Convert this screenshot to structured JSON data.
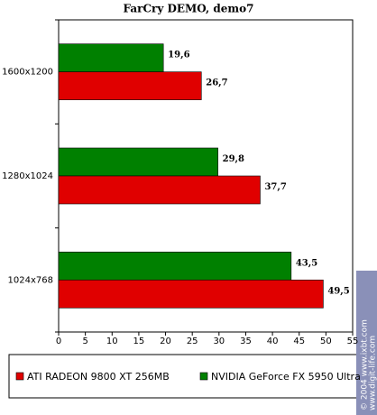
{
  "chart_data": {
    "type": "hbar",
    "title": "FarCry DEMO, demo7",
    "categories": [
      "1600x1200",
      "1280x1024",
      "1024x768"
    ],
    "series": [
      {
        "name": "ATI RADEON 9800 XT 256MB",
        "color": "#e00000",
        "values": [
          26.7,
          37.7,
          49.5
        ],
        "value_labels": [
          "26,7",
          "37,7",
          "49,5"
        ]
      },
      {
        "name": "NVIDIA GeForce FX 5950 Ultra",
        "color": "#008000",
        "values": [
          19.6,
          29.8,
          43.5
        ],
        "value_labels": [
          "19,6",
          "29,8",
          "43,5"
        ]
      }
    ],
    "xlim": [
      0,
      55
    ],
    "xticks": [
      0,
      5,
      10,
      15,
      20,
      25,
      30,
      35,
      40,
      45,
      50,
      55
    ],
    "watermark": [
      "© 2004 www.ixbt.com",
      "www.digit-life.com"
    ]
  }
}
